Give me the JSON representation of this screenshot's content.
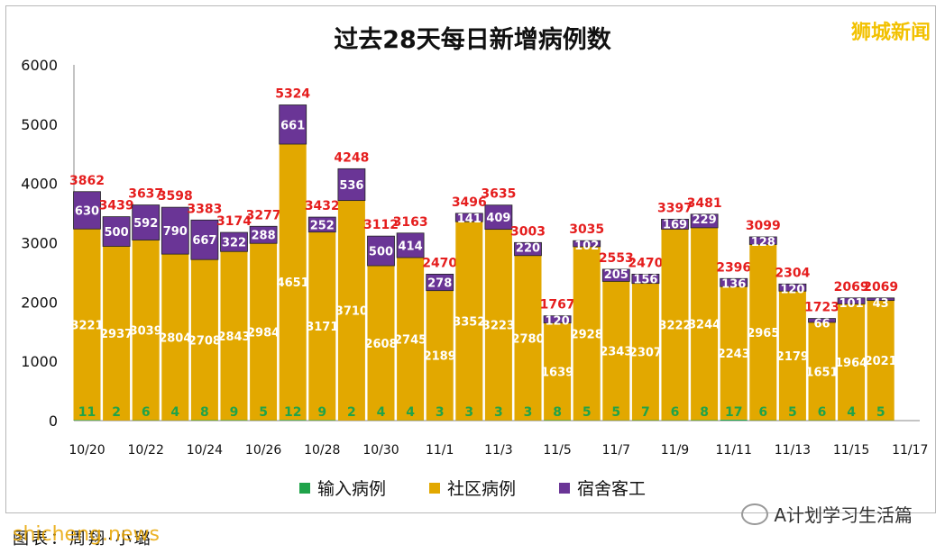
{
  "title": "过去28天每日新增病例数",
  "brand": "狮城新闻",
  "footer": {
    "caption": "图表：周翔·小璐",
    "watermark": "shicheng.news",
    "account": "A计划学习生活篇"
  },
  "legend": [
    "输入病例",
    "社区病例",
    "宿舍客工"
  ],
  "colors": {
    "imported": "#1fa34a",
    "community": "#e2a800",
    "dorm": "#6a3596",
    "total": "#e51e1e"
  },
  "chart_data": {
    "type": "bar",
    "stacked": true,
    "title": "过去28天每日新增病例数",
    "ylim": [
      0,
      6000
    ],
    "yticks": [
      0,
      1000,
      2000,
      3000,
      4000,
      5000,
      6000
    ],
    "xtick_labels": [
      "10/20",
      "10/22",
      "10/24",
      "10/26",
      "10/28",
      "10/30",
      "11/1",
      "11/3",
      "11/5",
      "11/7",
      "11/9",
      "11/11",
      "11/13",
      "11/15",
      "11/17"
    ],
    "categories": [
      "10/20",
      "10/21",
      "10/22",
      "10/23",
      "10/24",
      "10/25",
      "10/26",
      "10/27",
      "10/28",
      "10/29",
      "10/30",
      "10/31",
      "11/1",
      "11/2",
      "11/3",
      "11/4",
      "11/5",
      "11/6",
      "11/7",
      "11/8",
      "11/9",
      "11/10",
      "11/11",
      "11/12",
      "11/13",
      "11/14",
      "11/15",
      "11/16"
    ],
    "series": [
      {
        "name": "输入病例",
        "values": [
          11,
          2,
          6,
          4,
          8,
          9,
          5,
          12,
          9,
          2,
          4,
          4,
          3,
          3,
          3,
          3,
          8,
          5,
          5,
          7,
          6,
          8,
          17,
          6,
          5,
          6,
          4,
          5
        ]
      },
      {
        "name": "社区病例",
        "values": [
          3221,
          2937,
          3039,
          2804,
          2708,
          2843,
          2984,
          4651,
          3171,
          3710,
          2608,
          2745,
          2189,
          3352,
          3223,
          2780,
          1639,
          2928,
          2343,
          2307,
          3222,
          3244,
          2243,
          2965,
          2179,
          1651,
          1964,
          2021
        ]
      },
      {
        "name": "宿舍客工",
        "values": [
          630,
          500,
          592,
          790,
          667,
          322,
          288,
          661,
          252,
          536,
          500,
          414,
          278,
          141,
          409,
          220,
          120,
          102,
          205,
          156,
          169,
          229,
          136,
          128,
          120,
          66,
          101,
          43
        ]
      }
    ],
    "totals": [
      3862,
      3439,
      3637,
      3598,
      3383,
      3174,
      3277,
      5324,
      3432,
      4248,
      3112,
      3163,
      2470,
      3496,
      3635,
      3003,
      1767,
      3035,
      2553,
      2470,
      3397,
      3481,
      2396,
      3099,
      2304,
      1723,
      2069,
      2069
    ],
    "grid": false,
    "legend_position": "bottom"
  }
}
